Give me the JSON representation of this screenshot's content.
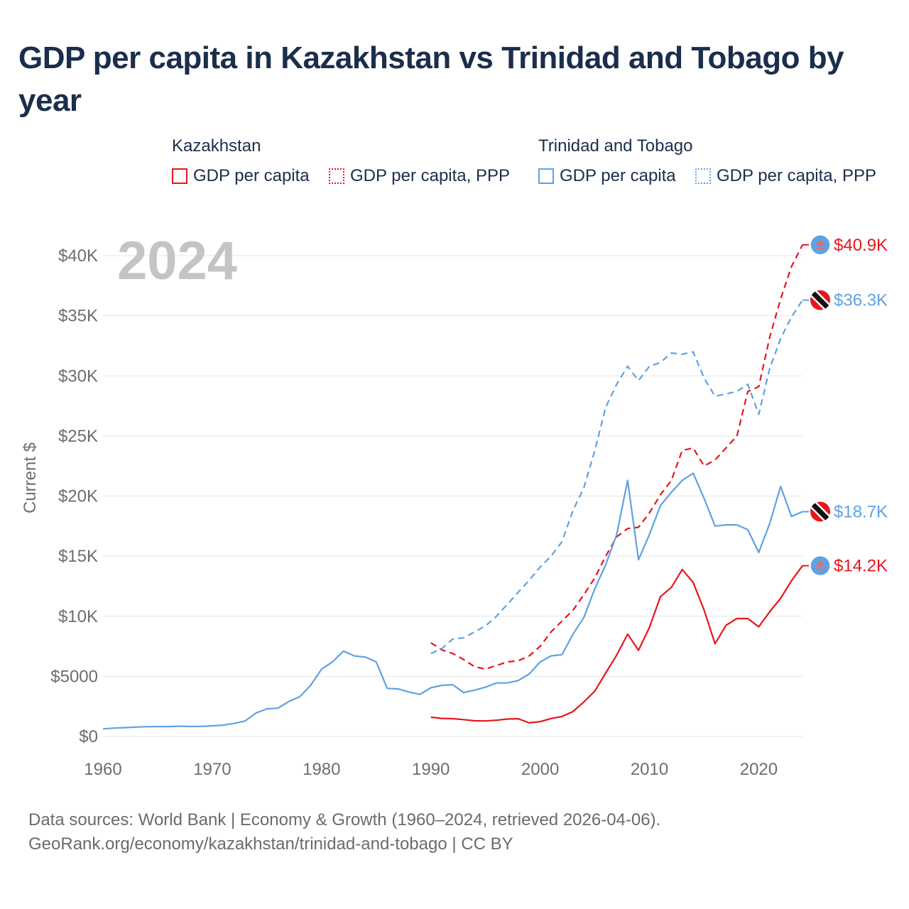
{
  "title": "GDP per capita in Kazakhstan vs Trinidad and Tobago by year",
  "legend": {
    "groups": [
      {
        "name": "Kazakhstan",
        "color": "#e8151c",
        "items": [
          "GDP per capita",
          "GDP per capita, PPP"
        ]
      },
      {
        "name": "Trinidad and Tobago",
        "color": "#5ea2e2",
        "items": [
          "GDP per capita",
          "GDP per capita, PPP"
        ]
      }
    ]
  },
  "year_label": "2024",
  "source": {
    "line1": "Data sources: World Bank | Economy & Growth (1960–2024, retrieved 2026-04-06).",
    "line2": "GeoRank.org/economy/kazakhstan/trinidad-and-tobago | CC BY"
  },
  "chart_data": {
    "type": "line",
    "title": "GDP per capita in Kazakhstan vs Trinidad and Tobago by year",
    "xlabel": "",
    "ylabel": "Current $",
    "xlim": [
      1960,
      2024
    ],
    "ylim": [
      0,
      42000
    ],
    "x_ticks": [
      1960,
      1970,
      1980,
      1990,
      2000,
      2010,
      2020
    ],
    "x_tick_labels": [
      "1960",
      "1970",
      "1980",
      "1990",
      "2000",
      "2010",
      "2020"
    ],
    "y_ticks": [
      0,
      5000,
      10000,
      15000,
      20000,
      25000,
      30000,
      35000,
      40000
    ],
    "y_tick_labels": [
      "$0",
      "$5000",
      "$10K",
      "$15K",
      "$20K",
      "$25K",
      "$30K",
      "$35K",
      "$40K"
    ],
    "grid": true,
    "series": [
      {
        "name": "Kazakhstan GDP per capita, PPP",
        "country": "Kazakhstan",
        "color": "#e8151c",
        "dash": "dashed",
        "end_label": "$40.9K",
        "x": [
          1990,
          1991,
          1992,
          1993,
          1994,
          1995,
          1996,
          1997,
          1998,
          1999,
          2000,
          2001,
          2002,
          2003,
          2004,
          2005,
          2006,
          2007,
          2008,
          2009,
          2010,
          2011,
          2012,
          2013,
          2014,
          2015,
          2016,
          2017,
          2018,
          2019,
          2020,
          2021,
          2022,
          2023,
          2024
        ],
        "values": [
          7800,
          7200,
          6900,
          6400,
          5800,
          5600,
          5900,
          6200,
          6300,
          6700,
          7500,
          8700,
          9600,
          10500,
          11800,
          13200,
          15000,
          16600,
          17300,
          17400,
          18600,
          20100,
          21300,
          23800,
          24000,
          22500,
          23000,
          24000,
          25000,
          28700,
          29100,
          33200,
          36400,
          39100,
          40900
        ]
      },
      {
        "name": "Trinidad and Tobago GDP per capita, PPP",
        "country": "Trinidad and Tobago",
        "color": "#5ea2e2",
        "dash": "dashed",
        "end_label": "$36.3K",
        "x": [
          1990,
          1991,
          1992,
          1993,
          1994,
          1995,
          1996,
          1997,
          1998,
          1999,
          2000,
          2001,
          2002,
          2003,
          2004,
          2005,
          2006,
          2007,
          2008,
          2009,
          2010,
          2011,
          2012,
          2013,
          2014,
          2015,
          2016,
          2017,
          2018,
          2019,
          2020,
          2021,
          2022,
          2023,
          2024
        ],
        "values": [
          6900,
          7300,
          8100,
          8200,
          8700,
          9200,
          10000,
          11000,
          12000,
          13000,
          14100,
          15000,
          16200,
          18800,
          20700,
          23800,
          27400,
          29300,
          30800,
          29600,
          30800,
          31100,
          31900,
          31800,
          32000,
          29800,
          28300,
          28500,
          28700,
          29300,
          26800,
          30600,
          33100,
          34900,
          36300
        ]
      },
      {
        "name": "Trinidad and Tobago GDP per capita",
        "country": "Trinidad and Tobago",
        "color": "#5ea2e2",
        "dash": "solid",
        "end_label": "$18.7K",
        "x": [
          1960,
          1961,
          1962,
          1963,
          1964,
          1965,
          1966,
          1967,
          1968,
          1969,
          1970,
          1971,
          1972,
          1973,
          1974,
          1975,
          1976,
          1977,
          1978,
          1979,
          1980,
          1981,
          1982,
          1983,
          1984,
          1985,
          1986,
          1987,
          1988,
          1989,
          1990,
          1991,
          1992,
          1993,
          1994,
          1995,
          1996,
          1997,
          1998,
          1999,
          2000,
          2001,
          2002,
          2003,
          2004,
          2005,
          2006,
          2007,
          2008,
          2009,
          2010,
          2011,
          2012,
          2013,
          2014,
          2015,
          2016,
          2017,
          2018,
          2019,
          2020,
          2021,
          2022,
          2023,
          2024
        ],
        "values": [
          630,
          690,
          730,
          780,
          810,
          820,
          820,
          850,
          830,
          840,
          880,
          940,
          1080,
          1280,
          1950,
          2300,
          2350,
          2900,
          3300,
          4250,
          5600,
          6200,
          7100,
          6700,
          6600,
          6200,
          4000,
          3950,
          3700,
          3500,
          4050,
          4250,
          4300,
          3650,
          3850,
          4100,
          4450,
          4450,
          4650,
          5200,
          6200,
          6700,
          6800,
          8500,
          9900,
          12300,
          14300,
          16800,
          21300,
          14700,
          16800,
          19200,
          20300,
          21300,
          21900,
          19800,
          17500,
          17600,
          17600,
          17200,
          15300,
          17700,
          20800,
          18300,
          18700
        ]
      },
      {
        "name": "Kazakhstan GDP per capita",
        "country": "Kazakhstan",
        "color": "#e8151c",
        "dash": "solid",
        "end_label": "$14.2K",
        "x": [
          1990,
          1991,
          1992,
          1993,
          1994,
          1995,
          1996,
          1997,
          1998,
          1999,
          2000,
          2001,
          2002,
          2003,
          2004,
          2005,
          2006,
          2007,
          2008,
          2009,
          2010,
          2011,
          2012,
          2013,
          2014,
          2015,
          2016,
          2017,
          2018,
          2019,
          2020,
          2021,
          2022,
          2023,
          2024
        ],
        "values": [
          1600,
          1500,
          1480,
          1400,
          1300,
          1290,
          1350,
          1450,
          1470,
          1130,
          1230,
          1490,
          1660,
          2070,
          2870,
          3770,
          5290,
          6770,
          8510,
          7170,
          9070,
          11630,
          12390,
          13890,
          12810,
          10510,
          7710,
          9250,
          9810,
          9810,
          9120,
          10370,
          11490,
          12960,
          14200
        ]
      }
    ]
  }
}
